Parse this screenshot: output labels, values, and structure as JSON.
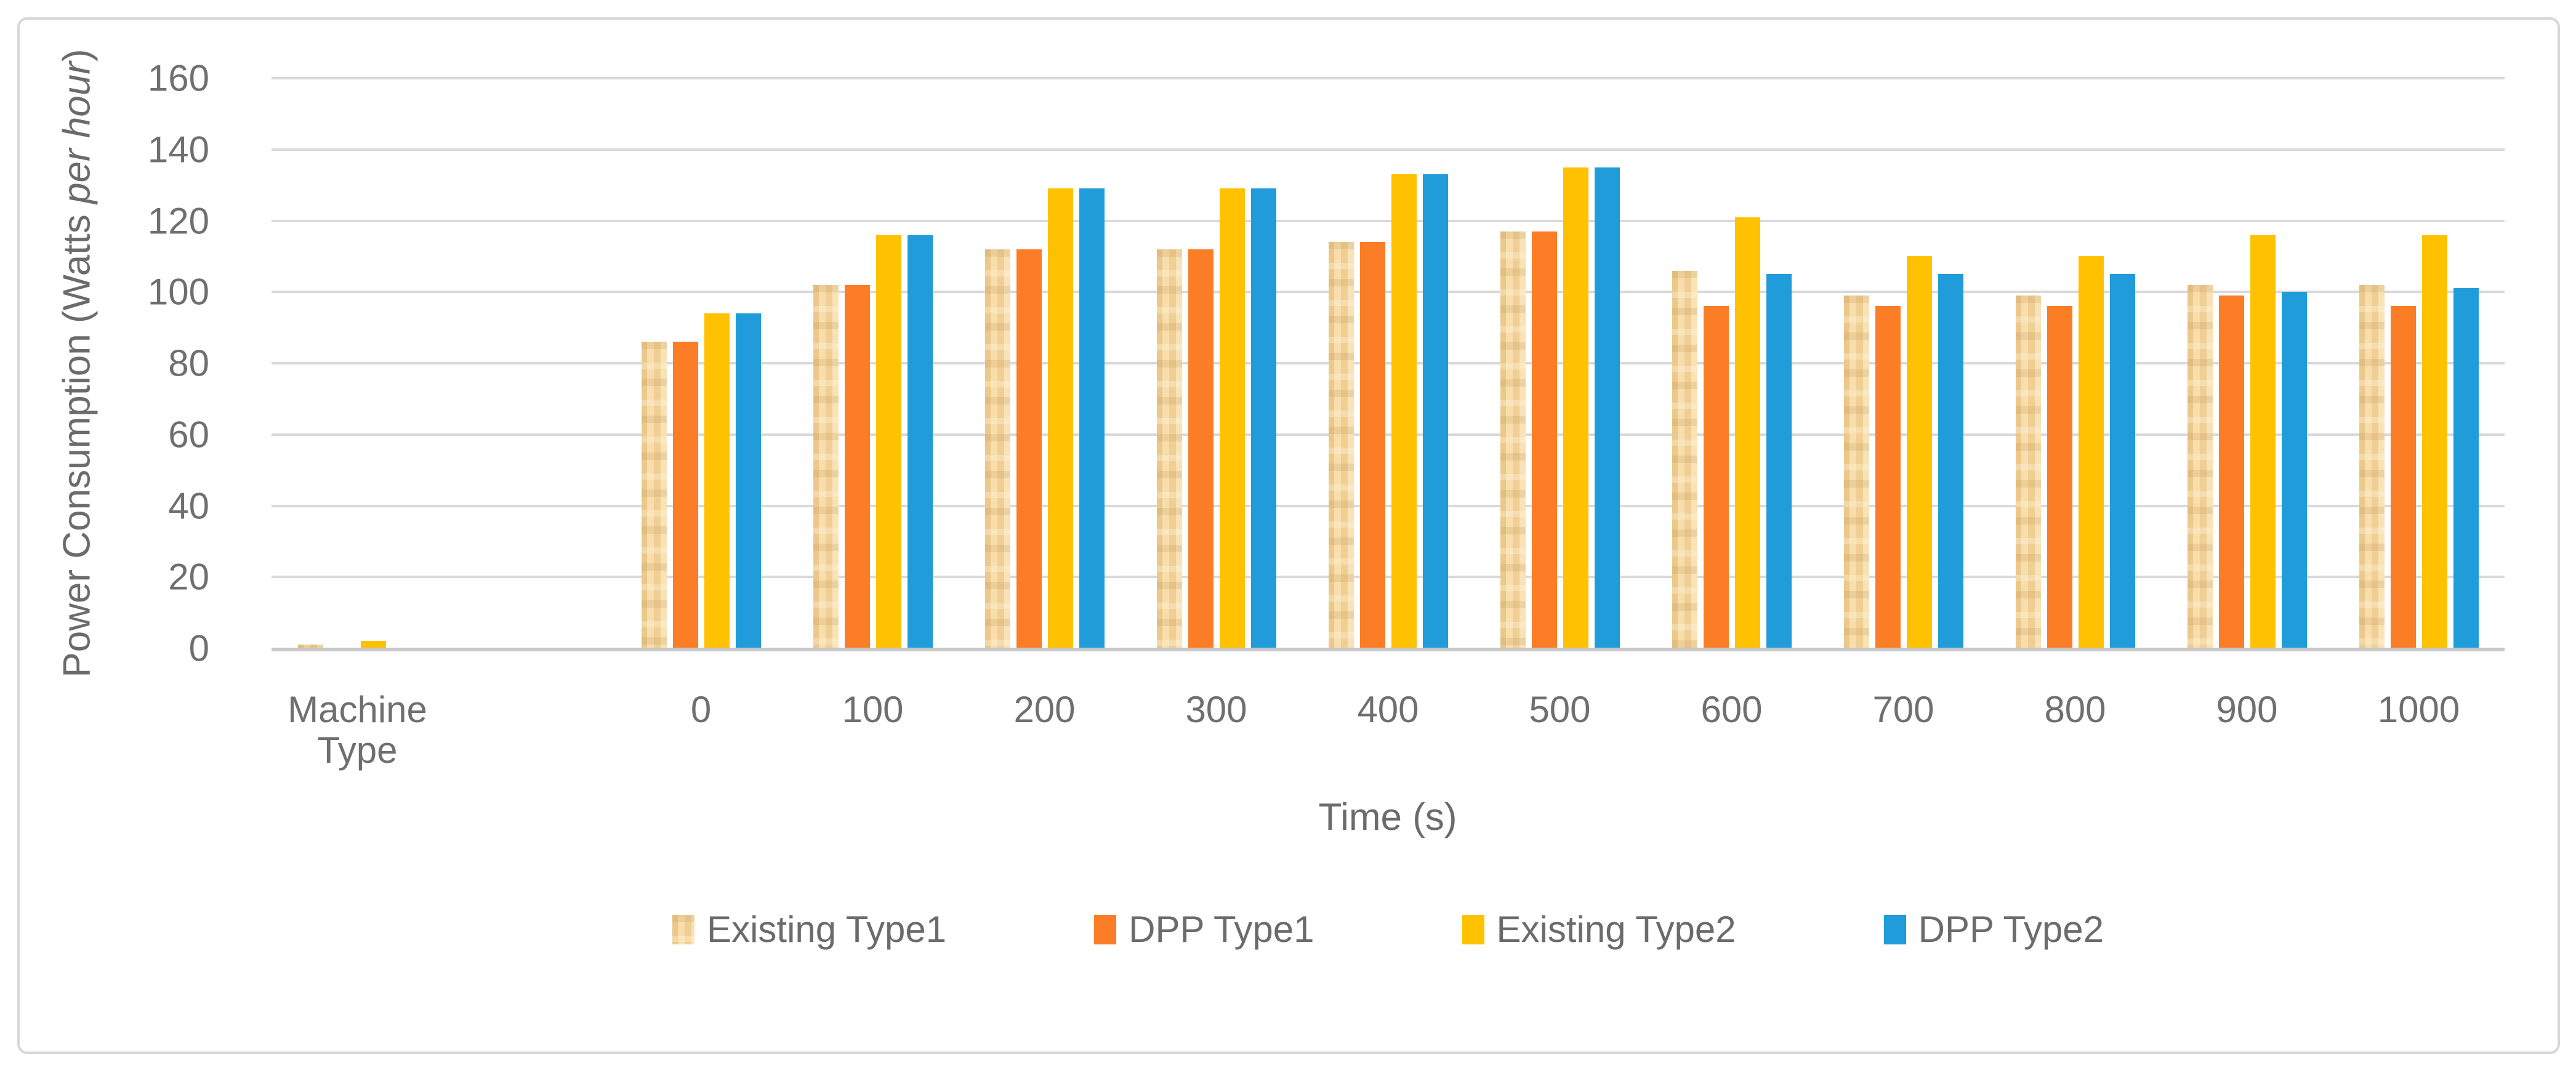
{
  "figure": {
    "y_title": {
      "prefix": "Power Consumption (Watts ",
      "italic": "per hour",
      "suffix": ")"
    },
    "x_title": "Time (s)"
  },
  "chart_data": {
    "type": "bar",
    "title": "",
    "xlabel": "Time (s)",
    "ylabel": "Power Consumption (Watts per hour)",
    "ylim": [
      0,
      160
    ],
    "ytick_step": 20,
    "yticks": [
      0,
      20,
      40,
      60,
      80,
      100,
      120,
      140,
      160
    ],
    "grid": true,
    "legend_position": "bottom",
    "categories": [
      "Machine Type",
      "0",
      "100",
      "200",
      "300",
      "400",
      "500",
      "600",
      "700",
      "800",
      "900",
      "1000"
    ],
    "layout_note": "one empty category slot between Machine Type and 0",
    "series": [
      {
        "name": "Existing Type1",
        "color": "#F3D49C",
        "fill": "tan-texture",
        "values": [
          1,
          86,
          102,
          112,
          112,
          114,
          117,
          106,
          99,
          99,
          102,
          102
        ]
      },
      {
        "name": "DPP Type1",
        "color": "#FB7D26",
        "fill": "solid",
        "values": [
          0,
          86,
          102,
          112,
          112,
          114,
          117,
          96,
          96,
          96,
          99,
          96
        ]
      },
      {
        "name": "Existing Type2",
        "color": "#FFC100",
        "fill": "solid",
        "values": [
          2,
          94,
          116,
          129,
          129,
          133,
          135,
          121,
          110,
          110,
          116,
          116
        ]
      },
      {
        "name": "DPP Type2",
        "color": "#1F9CD9",
        "fill": "solid",
        "values": [
          0,
          94,
          116,
          129,
          129,
          133,
          135,
          105,
          105,
          105,
          100,
          101
        ]
      }
    ],
    "colors": {
      "gridline": "#D9D9D9",
      "axis_line": "#C9C9C9",
      "text": "#6B6B6B",
      "frame_border": "#D7D7D7"
    }
  }
}
